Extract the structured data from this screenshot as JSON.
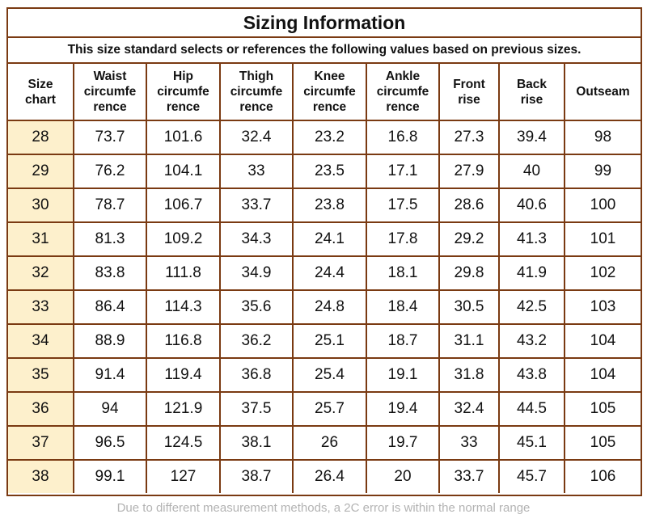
{
  "title": "Sizing Information",
  "subtitle": "This size standard selects or references the following values based on previous sizes.",
  "columns": [
    [
      "Size",
      "chart"
    ],
    [
      "Waist",
      "circumfe",
      "rence"
    ],
    [
      "Hip",
      "circumfe",
      "rence"
    ],
    [
      "Thigh",
      "circumfe",
      "rence"
    ],
    [
      "Knee",
      "circumfe",
      "rence"
    ],
    [
      "Ankle",
      "circumfe",
      "rence"
    ],
    [
      "Front",
      "rise"
    ],
    [
      "Back",
      "rise"
    ],
    [
      "Outseam"
    ]
  ],
  "rows": [
    [
      "28",
      "73.7",
      "101.6",
      "32.4",
      "23.2",
      "16.8",
      "27.3",
      "39.4",
      "98"
    ],
    [
      "29",
      "76.2",
      "104.1",
      "33",
      "23.5",
      "17.1",
      "27.9",
      "40",
      "99"
    ],
    [
      "30",
      "78.7",
      "106.7",
      "33.7",
      "23.8",
      "17.5",
      "28.6",
      "40.6",
      "100"
    ],
    [
      "31",
      "81.3",
      "109.2",
      "34.3",
      "24.1",
      "17.8",
      "29.2",
      "41.3",
      "101"
    ],
    [
      "32",
      "83.8",
      "111.8",
      "34.9",
      "24.4",
      "18.1",
      "29.8",
      "41.9",
      "102"
    ],
    [
      "33",
      "86.4",
      "114.3",
      "35.6",
      "24.8",
      "18.4",
      "30.5",
      "42.5",
      "103"
    ],
    [
      "34",
      "88.9",
      "116.8",
      "36.2",
      "25.1",
      "18.7",
      "31.1",
      "43.2",
      "104"
    ],
    [
      "35",
      "91.4",
      "119.4",
      "36.8",
      "25.4",
      "19.1",
      "31.8",
      "43.8",
      "104"
    ],
    [
      "36",
      "94",
      "121.9",
      "37.5",
      "25.7",
      "19.4",
      "32.4",
      "44.5",
      "105"
    ],
    [
      "37",
      "96.5",
      "124.5",
      "38.1",
      "26",
      "19.7",
      "33",
      "45.1",
      "105"
    ],
    [
      "38",
      "99.1",
      "127",
      "38.7",
      "26.4",
      "20",
      "33.7",
      "45.7",
      "106"
    ]
  ],
  "footer": "Due to different measurement methods, a 2C error is within the normal range",
  "colors": {
    "border": "#7a3a12",
    "size_cell_background": "#fdf0cc",
    "footer_text": "#b3b3b3"
  }
}
